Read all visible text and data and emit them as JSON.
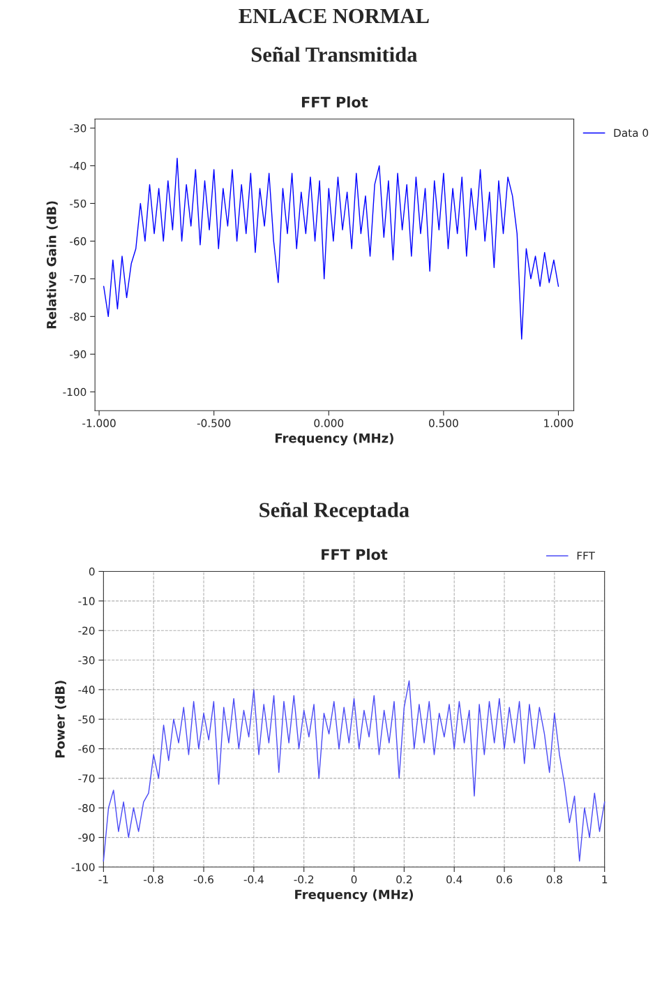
{
  "chart_data": [
    {
      "type": "line",
      "title": "FFT Plot",
      "xlabel": "Frequency (MHz)",
      "ylabel": "Relative Gain (dB)",
      "annotations": [
        "ENLACE NORMAL",
        "Señal Transmitida"
      ],
      "xlim": [
        -1.018,
        1.067
      ],
      "ylim": [
        -105,
        -27.6
      ],
      "xticks": [
        {
          "value": -1,
          "label": "-1.000"
        },
        {
          "value": -0.5,
          "label": "-0.500"
        },
        {
          "value": 0,
          "label": "0.000"
        },
        {
          "value": 0.5,
          "label": "0.500"
        },
        {
          "value": 1,
          "label": "1.000"
        }
      ],
      "yticks": [
        -100,
        -90,
        -80,
        -70,
        -60,
        -50,
        -40,
        -30
      ],
      "grid": false,
      "legend": "right",
      "series": [
        {
          "name": "Data 0",
          "color": "#0000ff",
          "x": [
            -0.98,
            -0.96,
            -0.94,
            -0.92,
            -0.9,
            -0.88,
            -0.86,
            -0.84,
            -0.82,
            -0.8,
            -0.78,
            -0.76,
            -0.74,
            -0.72,
            -0.7,
            -0.68,
            -0.66,
            -0.64,
            -0.62,
            -0.6,
            -0.58,
            -0.56,
            -0.54,
            -0.52,
            -0.5,
            -0.48,
            -0.46,
            -0.44,
            -0.42,
            -0.4,
            -0.38,
            -0.36,
            -0.34,
            -0.32,
            -0.3,
            -0.28,
            -0.26,
            -0.24,
            -0.22,
            -0.2,
            -0.18,
            -0.16,
            -0.14,
            -0.12,
            -0.1,
            -0.08,
            -0.06,
            -0.04,
            -0.02,
            0.0,
            0.02,
            0.04,
            0.06,
            0.08,
            0.1,
            0.12,
            0.14,
            0.16,
            0.18,
            0.2,
            0.22,
            0.24,
            0.26,
            0.28,
            0.3,
            0.32,
            0.34,
            0.36,
            0.38,
            0.4,
            0.42,
            0.44,
            0.46,
            0.48,
            0.5,
            0.52,
            0.54,
            0.56,
            0.58,
            0.6,
            0.62,
            0.64,
            0.66,
            0.68,
            0.7,
            0.72,
            0.74,
            0.76,
            0.78,
            0.8,
            0.82,
            0.84,
            0.86,
            0.88,
            0.9,
            0.92,
            0.94,
            0.96,
            0.98,
            1.0
          ],
          "values": [
            -72,
            -80,
            -65,
            -78,
            -64,
            -75,
            -66,
            -62,
            -50,
            -60,
            -45,
            -58,
            -46,
            -60,
            -44,
            -57,
            -38,
            -60,
            -45,
            -56,
            -41,
            -61,
            -44,
            -57,
            -41,
            -62,
            -46,
            -56,
            -41,
            -60,
            -45,
            -58,
            -42,
            -63,
            -46,
            -56,
            -42,
            -60,
            -71,
            -46,
            -58,
            -42,
            -62,
            -47,
            -58,
            -43,
            -60,
            -44,
            -70,
            -46,
            -60,
            -43,
            -57,
            -47,
            -62,
            -42,
            -58,
            -48,
            -64,
            -45,
            -40,
            -59,
            -44,
            -65,
            -42,
            -57,
            -45,
            -64,
            -43,
            -58,
            -46,
            -68,
            -44,
            -57,
            -42,
            -62,
            -46,
            -58,
            -43,
            -64,
            -46,
            -57,
            -41,
            -60,
            -47,
            -67,
            -44,
            -58,
            -43,
            -48,
            -58,
            -86,
            -62,
            -70,
            -64,
            -72,
            -63,
            -71,
            -65,
            -72
          ]
        }
      ]
    },
    {
      "type": "line",
      "title": "FFT Plot",
      "xlabel": "Frequency (MHz)",
      "ylabel": "Power (dB)",
      "annotations": [
        "Señal Receptada"
      ],
      "xlim": [
        -1,
        1
      ],
      "ylim": [
        -100,
        0
      ],
      "xticks": [
        -1,
        -0.8,
        -0.6,
        -0.4,
        -0.2,
        0,
        0.2,
        0.4,
        0.6,
        0.8,
        1
      ],
      "yticks": [
        -100,
        -90,
        -80,
        -70,
        -60,
        -50,
        -40,
        -30,
        -20,
        -10,
        0
      ],
      "grid": true,
      "line_style": "solid",
      "legend": "top right",
      "series": [
        {
          "name": "FFT",
          "color": "#4a4af5",
          "x": [
            -1.0,
            -0.98,
            -0.96,
            -0.94,
            -0.92,
            -0.9,
            -0.88,
            -0.86,
            -0.84,
            -0.82,
            -0.8,
            -0.78,
            -0.76,
            -0.74,
            -0.72,
            -0.7,
            -0.68,
            -0.66,
            -0.64,
            -0.62,
            -0.6,
            -0.58,
            -0.56,
            -0.54,
            -0.52,
            -0.5,
            -0.48,
            -0.46,
            -0.44,
            -0.42,
            -0.4,
            -0.38,
            -0.36,
            -0.34,
            -0.32,
            -0.3,
            -0.28,
            -0.26,
            -0.24,
            -0.22,
            -0.2,
            -0.18,
            -0.16,
            -0.14,
            -0.12,
            -0.1,
            -0.08,
            -0.06,
            -0.04,
            -0.02,
            0.0,
            0.02,
            0.04,
            0.06,
            0.08,
            0.1,
            0.12,
            0.14,
            0.16,
            0.18,
            0.2,
            0.22,
            0.24,
            0.26,
            0.28,
            0.3,
            0.32,
            0.34,
            0.36,
            0.38,
            0.4,
            0.42,
            0.44,
            0.46,
            0.48,
            0.5,
            0.52,
            0.54,
            0.56,
            0.58,
            0.6,
            0.62,
            0.64,
            0.66,
            0.68,
            0.7,
            0.72,
            0.74,
            0.76,
            0.78,
            0.8,
            0.82,
            0.84,
            0.86,
            0.88,
            0.9,
            0.92,
            0.94,
            0.96,
            0.98,
            1.0
          ],
          "values": [
            -98,
            -80,
            -74,
            -88,
            -78,
            -90,
            -80,
            -88,
            -78,
            -75,
            -62,
            -70,
            -52,
            -64,
            -50,
            -58,
            -46,
            -62,
            -44,
            -60,
            -48,
            -57,
            -44,
            -72,
            -46,
            -58,
            -43,
            -60,
            -47,
            -56,
            -40,
            -62,
            -45,
            -58,
            -42,
            -68,
            -44,
            -58,
            -42,
            -60,
            -47,
            -56,
            -45,
            -70,
            -48,
            -55,
            -44,
            -60,
            -46,
            -58,
            -43,
            -60,
            -47,
            -56,
            -42,
            -62,
            -47,
            -58,
            -44,
            -70,
            -46,
            -37,
            -60,
            -45,
            -58,
            -44,
            -62,
            -48,
            -56,
            -45,
            -60,
            -44,
            -58,
            -47,
            -76,
            -45,
            -62,
            -44,
            -58,
            -43,
            -60,
            -46,
            -58,
            -44,
            -65,
            -45,
            -60,
            -46,
            -55,
            -68,
            -48,
            -62,
            -72,
            -85,
            -76,
            -98,
            -80,
            -90,
            -75,
            -88,
            -78
          ]
        }
      ]
    }
  ]
}
